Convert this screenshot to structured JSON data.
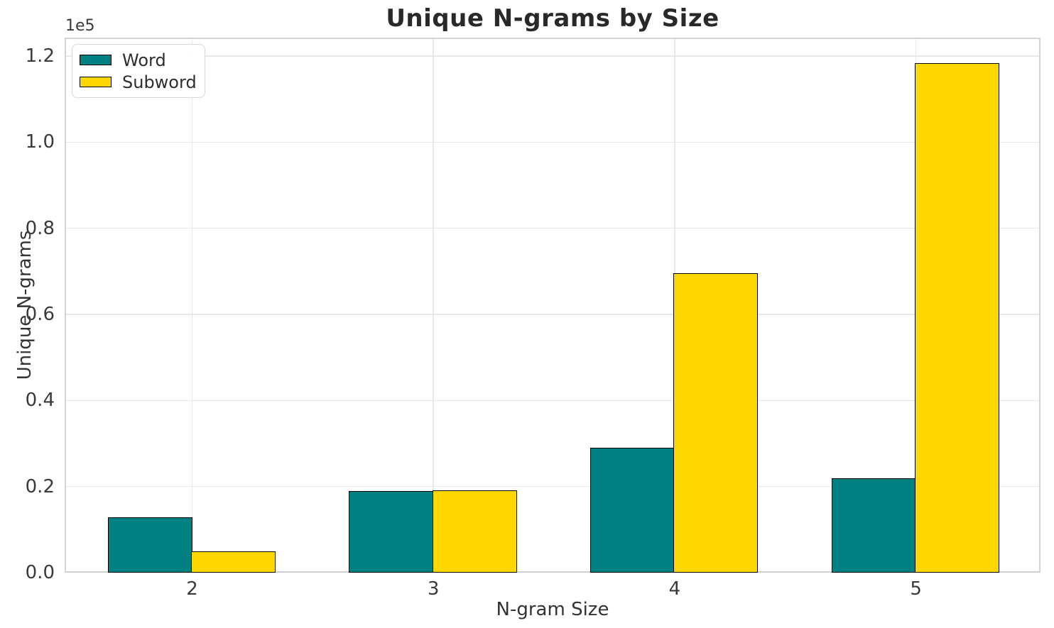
{
  "chart_data": {
    "type": "bar",
    "title": "Unique N-grams by Size",
    "xlabel": "N-gram Size",
    "ylabel": "Unique N-grams",
    "y_scale_offset_label": "1e5",
    "categories": [
      "2",
      "3",
      "4",
      "5"
    ],
    "series": [
      {
        "name": "Word",
        "color": "#008080",
        "edge_color": "#000000",
        "values": [
          12800,
          19000,
          29000,
          22000
        ]
      },
      {
        "name": "Subword",
        "color": "#FFD700",
        "edge_color": "#000000",
        "values": [
          5000,
          19200,
          69600,
          118400
        ]
      }
    ],
    "ylim": [
      0,
      124300
    ],
    "yticks": [
      0,
      20000,
      40000,
      60000,
      80000,
      100000,
      120000
    ],
    "ytick_labels": [
      "0.0",
      "0.2",
      "0.4",
      "0.6",
      "0.8",
      "1.0",
      "1.2"
    ],
    "grid": true,
    "legend_position": "upper left",
    "legend_entries": [
      "Word",
      "Subword"
    ]
  }
}
